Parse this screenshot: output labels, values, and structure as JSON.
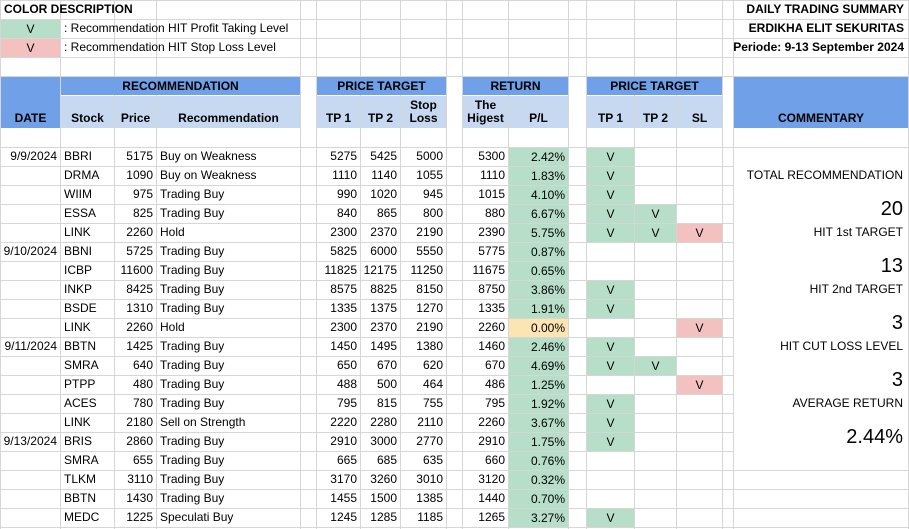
{
  "legend": {
    "title": "COLOR DESCRIPTION",
    "items": [
      {
        "mark": "V",
        "text": ": Recommendation HIT Profit Taking Level",
        "color": "#b7dec8"
      },
      {
        "mark": "V",
        "text": ": Recommendation HIT Stop Loss Level",
        "color": "#f4c1c1"
      }
    ]
  },
  "report": {
    "title": "DAILY TRADING SUMMARY",
    "company": "ERDIKHA ELIT SEKURITAS",
    "period": "Periode:  9-13 September 2024"
  },
  "headers": {
    "date": "DATE",
    "recommendation_group": "RECOMMENDATION",
    "stock": "Stock",
    "price": "Price",
    "recommendation": "Recommendation",
    "price_target_group": "PRICE TARGET",
    "tp1": "TP 1",
    "tp2": "TP 2",
    "stop_loss": "Stop Loss",
    "return_group": "RETURN",
    "highest": "The Higest",
    "pl": "P/L",
    "hit_group": "PRICE TARGET",
    "hit_tp1": "TP 1",
    "hit_tp2": "TP 2",
    "hit_sl": "SL",
    "commentary": "COMMENTARY"
  },
  "rows": [
    {
      "date": "9/9/2024",
      "stock": "BBRI",
      "price": "5175",
      "rec": "Buy on Weakness",
      "tp1": "5275",
      "tp2": "5425",
      "sl": "5000",
      "high": "5300",
      "pl": "2.42%",
      "pl_color": "green",
      "h1": "V",
      "h2": "",
      "hs": ""
    },
    {
      "date": "",
      "stock": "DRMA",
      "price": "1090",
      "rec": "Buy on Weakness",
      "tp1": "1110",
      "tp2": "1140",
      "sl": "1055",
      "high": "1110",
      "pl": "1.83%",
      "pl_color": "green",
      "h1": "V",
      "h2": "",
      "hs": ""
    },
    {
      "date": "",
      "stock": "WIIM",
      "price": "975",
      "rec": "Trading Buy",
      "tp1": "990",
      "tp2": "1020",
      "sl": "945",
      "high": "1015",
      "pl": "4.10%",
      "pl_color": "green",
      "h1": "V",
      "h2": "",
      "hs": ""
    },
    {
      "date": "",
      "stock": "ESSA",
      "price": "825",
      "rec": "Trading Buy",
      "tp1": "840",
      "tp2": "865",
      "sl": "800",
      "high": "880",
      "pl": "6.67%",
      "pl_color": "green",
      "h1": "V",
      "h2": "V",
      "hs": ""
    },
    {
      "date": "",
      "stock": "LINK",
      "price": "2260",
      "rec": "Hold",
      "tp1": "2300",
      "tp2": "2370",
      "sl": "2190",
      "high": "2390",
      "pl": "5.75%",
      "pl_color": "green",
      "h1": "V",
      "h2": "V",
      "hs": "V"
    },
    {
      "date": "9/10/2024",
      "stock": "BBNI",
      "price": "5725",
      "rec": "Trading Buy",
      "tp1": "5825",
      "tp2": "6000",
      "sl": "5550",
      "high": "5775",
      "pl": "0.87%",
      "pl_color": "green",
      "h1": "",
      "h2": "",
      "hs": ""
    },
    {
      "date": "",
      "stock": "ICBP",
      "price": "11600",
      "rec": "Trading Buy",
      "tp1": "11825",
      "tp2": "12175",
      "sl": "11250",
      "high": "11675",
      "pl": "0.65%",
      "pl_color": "green",
      "h1": "",
      "h2": "",
      "hs": ""
    },
    {
      "date": "",
      "stock": "INKP",
      "price": "8425",
      "rec": "Trading Buy",
      "tp1": "8575",
      "tp2": "8825",
      "sl": "8150",
      "high": "8750",
      "pl": "3.86%",
      "pl_color": "green",
      "h1": "V",
      "h2": "",
      "hs": ""
    },
    {
      "date": "",
      "stock": "BSDE",
      "price": "1310",
      "rec": "Trading Buy",
      "tp1": "1335",
      "tp2": "1375",
      "sl": "1270",
      "high": "1335",
      "pl": "1.91%",
      "pl_color": "green",
      "h1": "V",
      "h2": "",
      "hs": ""
    },
    {
      "date": "",
      "stock": "LINK",
      "price": "2260",
      "rec": "Hold",
      "tp1": "2300",
      "tp2": "2370",
      "sl": "2190",
      "high": "2260",
      "pl": "0.00%",
      "pl_color": "yellow",
      "h1": "",
      "h2": "",
      "hs": "V"
    },
    {
      "date": "9/11/2024",
      "stock": "BBTN",
      "price": "1425",
      "rec": "Trading Buy",
      "tp1": "1450",
      "tp2": "1495",
      "sl": "1380",
      "high": "1460",
      "pl": "2.46%",
      "pl_color": "green",
      "h1": "V",
      "h2": "",
      "hs": ""
    },
    {
      "date": "",
      "stock": "SMRA",
      "price": "640",
      "rec": "Trading Buy",
      "tp1": "650",
      "tp2": "670",
      "sl": "620",
      "high": "670",
      "pl": "4.69%",
      "pl_color": "green",
      "h1": "V",
      "h2": "V",
      "hs": ""
    },
    {
      "date": "",
      "stock": "PTPP",
      "price": "480",
      "rec": "Trading Buy",
      "tp1": "488",
      "tp2": "500",
      "sl": "464",
      "high": "486",
      "pl": "1.25%",
      "pl_color": "green",
      "h1": "",
      "h2": "",
      "hs": "V"
    },
    {
      "date": "",
      "stock": "ACES",
      "price": "780",
      "rec": "Trading Buy",
      "tp1": "795",
      "tp2": "815",
      "sl": "755",
      "high": "795",
      "pl": "1.92%",
      "pl_color": "green",
      "h1": "V",
      "h2": "",
      "hs": ""
    },
    {
      "date": "",
      "stock": "LINK",
      "price": "2180",
      "rec": "Sell on Strength",
      "tp1": "2220",
      "tp2": "2280",
      "sl": "2110",
      "high": "2260",
      "pl": "3.67%",
      "pl_color": "green",
      "h1": "V",
      "h2": "",
      "hs": ""
    },
    {
      "date": "9/13/2024",
      "stock": "BRIS",
      "price": "2860",
      "rec": "Trading Buy",
      "tp1": "2910",
      "tp2": "3000",
      "sl": "2770",
      "high": "2910",
      "pl": "1.75%",
      "pl_color": "green",
      "h1": "V",
      "h2": "",
      "hs": ""
    },
    {
      "date": "",
      "stock": "SMRA",
      "price": "655",
      "rec": "Trading Buy",
      "tp1": "665",
      "tp2": "685",
      "sl": "635",
      "high": "660",
      "pl": "0.76%",
      "pl_color": "green",
      "h1": "",
      "h2": "",
      "hs": ""
    },
    {
      "date": "",
      "stock": "TLKM",
      "price": "3110",
      "rec": "Trading Buy",
      "tp1": "3170",
      "tp2": "3260",
      "sl": "3010",
      "high": "3120",
      "pl": "0.32%",
      "pl_color": "green",
      "h1": "",
      "h2": "",
      "hs": ""
    },
    {
      "date": "",
      "stock": "BBTN",
      "price": "1430",
      "rec": "Trading Buy",
      "tp1": "1455",
      "tp2": "1500",
      "sl": "1385",
      "high": "1440",
      "pl": "0.70%",
      "pl_color": "green",
      "h1": "",
      "h2": "",
      "hs": ""
    },
    {
      "date": "",
      "stock": "MEDC",
      "price": "1225",
      "rec": "Speculati Buy",
      "tp1": "1245",
      "tp2": "1285",
      "sl": "1185",
      "high": "1265",
      "pl": "3.27%",
      "pl_color": "green",
      "h1": "V",
      "h2": "",
      "hs": ""
    }
  ],
  "commentary": {
    "total_label": "TOTAL RECOMMENDATION",
    "total_value": "20",
    "hit1_label": "HIT 1st TARGET",
    "hit1_value": "13",
    "hit2_label": "HIT 2nd TARGET",
    "hit2_value": "3",
    "cut_label": "HIT CUT LOSS LEVEL",
    "cut_value": "3",
    "avg_label": "AVERAGE RETURN",
    "avg_value": "2.44%"
  },
  "colors": {
    "header_blue": "#6fa0e8",
    "header_light": "#c6d9f1",
    "profit_green": "#b7dec8",
    "stop_pink": "#f4c1c1",
    "neutral_yellow": "#fce4b3"
  }
}
